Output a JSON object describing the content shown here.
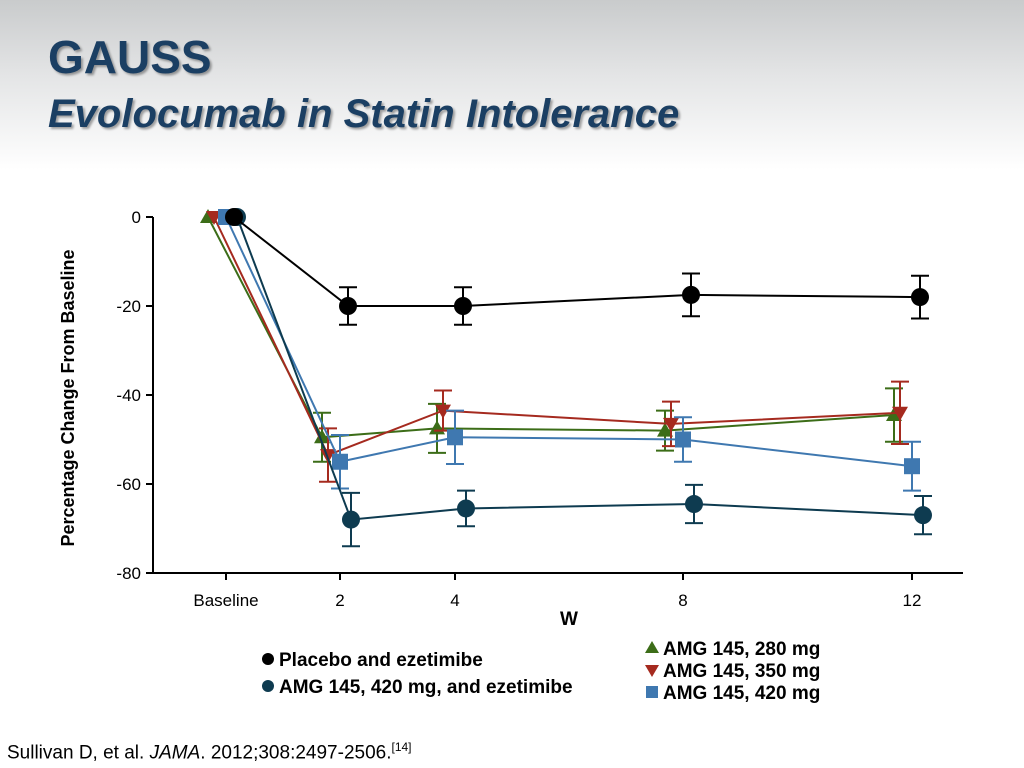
{
  "slide": {
    "title": "GAUSS",
    "subtitle": "Evolocumab in Statin Intolerance",
    "citation": {
      "authors": "Sullivan D, et al. ",
      "journal": "JAMA",
      "details": ". 2012;308:2497-2506.",
      "ref": "[14]"
    }
  },
  "chart_data": {
    "type": "line",
    "xlabel": "W",
    "ylabel": "Percentage Change From Baseline",
    "categories": [
      "Baseline",
      "2",
      "4",
      "8",
      "12"
    ],
    "ylim": [
      -80,
      0
    ],
    "yticks": [
      0,
      -20,
      -40,
      -60,
      -80
    ],
    "grid": false,
    "legend_position": "bottom",
    "series": [
      {
        "name": "Placebo and ezetimibe",
        "marker": "circle",
        "color": "#000000",
        "values": [
          0,
          -20,
          -20,
          -17.5,
          -18
        ],
        "error": [
          0,
          4.2,
          4.2,
          4.8,
          4.8
        ]
      },
      {
        "name": "AMG 145, 420 mg, and ezetimibe",
        "marker": "circle",
        "color": "#0e3b50",
        "values": [
          0,
          -68,
          -65.5,
          -64.5,
          -67
        ],
        "error": [
          0,
          6,
          4,
          4.3,
          4.3
        ]
      },
      {
        "name": "AMG 145, 280 mg",
        "marker": "triangle-up",
        "color": "#3c6d18",
        "values": [
          0,
          -49.5,
          -47.5,
          -48,
          -44.5
        ],
        "error": [
          0,
          5.5,
          5.5,
          4.5,
          6
        ]
      },
      {
        "name": "AMG 145, 350 mg",
        "marker": "triangle-down",
        "color": "#a52a1f",
        "values": [
          0,
          -53.5,
          -43.5,
          -46.5,
          -44
        ],
        "error": [
          0,
          6,
          4.5,
          5,
          7
        ]
      },
      {
        "name": "AMG 145, 420 mg",
        "marker": "square",
        "color": "#3f78b0",
        "values": [
          0,
          -55,
          -49.5,
          -50,
          -56
        ],
        "error": [
          0,
          6,
          6,
          5,
          5.5
        ]
      }
    ]
  }
}
